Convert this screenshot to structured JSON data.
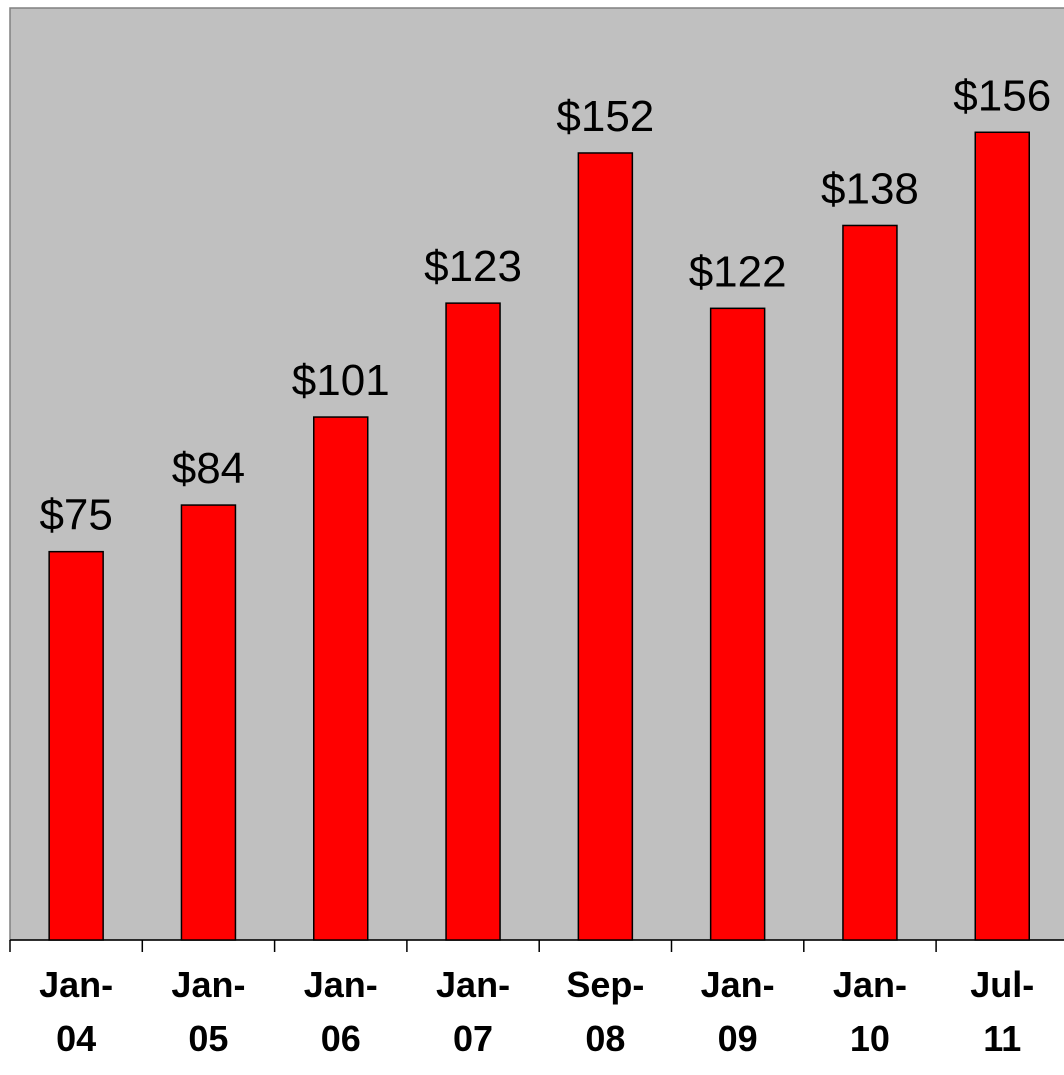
{
  "chart_data": {
    "type": "bar",
    "categories": [
      "Jan-04",
      "Jan-05",
      "Jan-06",
      "Jan-07",
      "Sep-08",
      "Jan-09",
      "Jan-10",
      "Jul-11"
    ],
    "values": [
      75,
      84,
      101,
      123,
      152,
      122,
      138,
      156
    ],
    "value_labels": [
      "$75",
      "$84",
      "$101",
      "$123",
      "$152",
      "$122",
      "$138",
      "$156"
    ],
    "color": "#ff0000",
    "ylim": [
      0,
      180
    ]
  }
}
